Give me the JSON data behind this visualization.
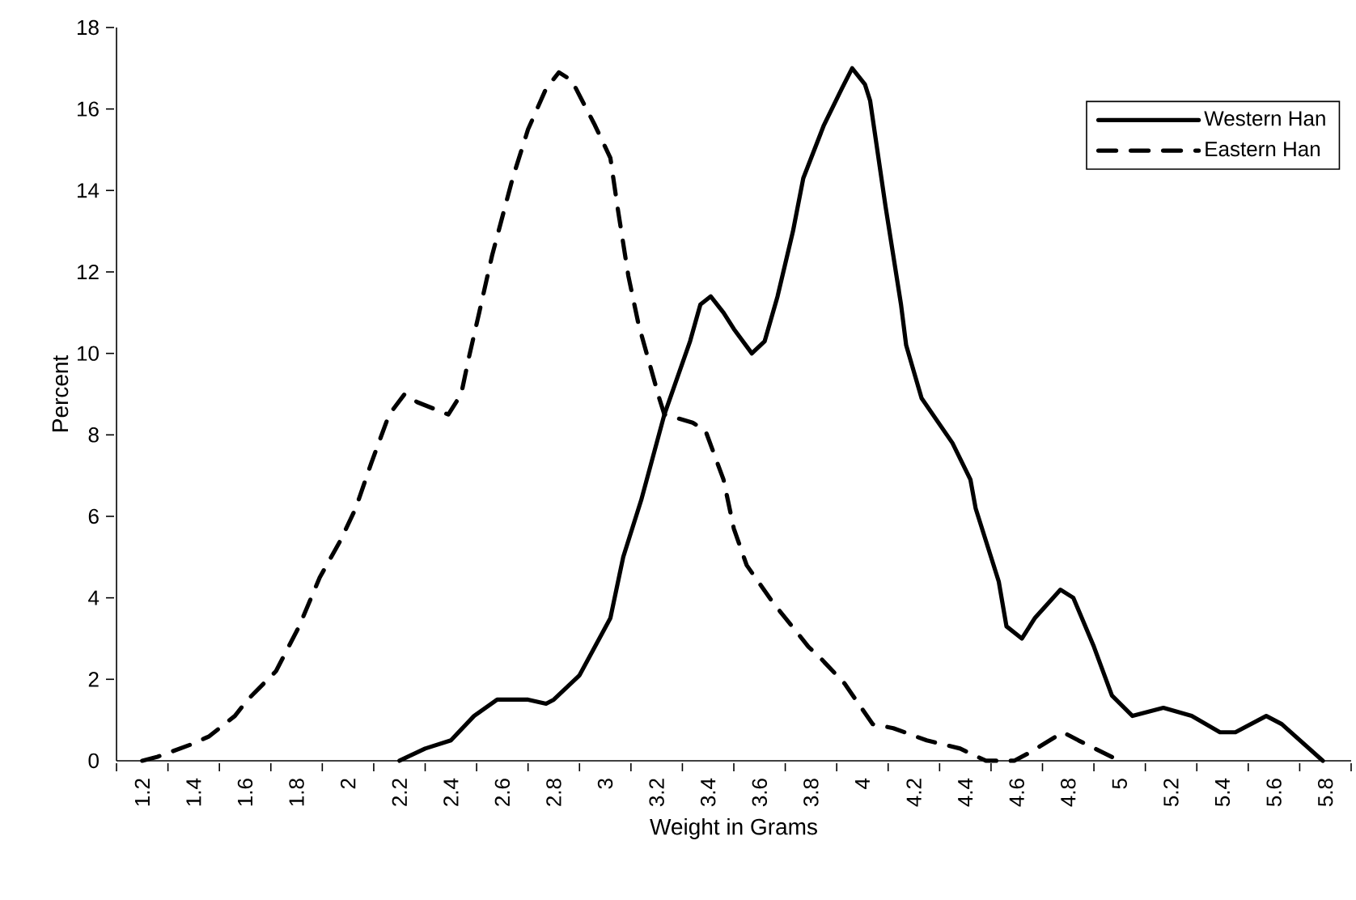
{
  "chart_data": {
    "type": "line",
    "xlabel": "Weight in Grams",
    "ylabel": "Percent",
    "xlim": [
      1.1,
      5.9
    ],
    "ylim": [
      0,
      18
    ],
    "xticks": [
      1.2,
      1.4,
      1.6,
      1.8,
      2,
      2.2,
      2.4,
      2.6,
      2.8,
      3,
      3.2,
      3.4,
      3.6,
      3.8,
      4,
      4.2,
      4.4,
      4.6,
      4.8,
      5,
      5.2,
      5.4,
      5.6,
      5.8
    ],
    "yticks": [
      0,
      2,
      4,
      6,
      8,
      10,
      12,
      14,
      16,
      18
    ],
    "grid": false,
    "legend": "top right",
    "series": [
      {
        "name": "Western Han",
        "color": "#000000",
        "line_style": "solid",
        "x": [
          2.2,
          2.3,
          2.4,
          2.49,
          2.58,
          2.7,
          2.77,
          2.8,
          2.9,
          2.96,
          3.02,
          3.07,
          3.14,
          3.23,
          3.33,
          3.37,
          3.41,
          3.46,
          3.5,
          3.57,
          3.62,
          3.67,
          3.73,
          3.77,
          3.85,
          3.92,
          3.96,
          4.01,
          4.03,
          4.09,
          4.15,
          4.17,
          4.23,
          4.35,
          4.42,
          4.44,
          4.5,
          4.53,
          4.56,
          4.62,
          4.67,
          4.77,
          4.82,
          4.9,
          4.97,
          5.05,
          5.17,
          5.28,
          5.39,
          5.45,
          5.57,
          5.63,
          5.79
        ],
        "values": [
          0,
          0.3,
          0.5,
          1.1,
          1.5,
          1.5,
          1.4,
          1.5,
          2.1,
          2.8,
          3.5,
          5.0,
          6.4,
          8.5,
          10.3,
          11.2,
          11.4,
          11.0,
          10.6,
          10.0,
          10.3,
          11.4,
          13.0,
          14.3,
          15.6,
          16.5,
          17.0,
          16.6,
          16.2,
          13.6,
          11.2,
          10.2,
          8.9,
          7.8,
          6.9,
          6.2,
          5.0,
          4.4,
          3.3,
          3.0,
          3.5,
          4.2,
          4.0,
          2.8,
          1.6,
          1.1,
          1.3,
          1.1,
          0.7,
          0.7,
          1.1,
          0.9,
          0
        ]
      },
      {
        "name": "Eastern Han",
        "color": "#000000",
        "line_style": "dashed",
        "x": [
          1.2,
          1.26,
          1.39,
          1.46,
          1.56,
          1.61,
          1.72,
          1.81,
          1.89,
          1.97,
          2.03,
          2.09,
          2.16,
          2.22,
          2.27,
          2.39,
          2.44,
          2.47,
          2.51,
          2.56,
          2.64,
          2.7,
          2.77,
          2.82,
          2.87,
          2.96,
          3.02,
          3.05,
          3.09,
          3.13,
          3.21,
          3.23,
          3.34,
          3.39,
          3.46,
          3.5,
          3.55,
          3.65,
          3.79,
          3.84,
          3.93,
          4.04,
          4.12,
          4.25,
          4.38,
          4.48,
          4.59,
          4.65,
          4.78,
          4.84,
          5.0
        ],
        "values": [
          0,
          0.1,
          0.4,
          0.6,
          1.1,
          1.5,
          2.2,
          3.3,
          4.5,
          5.4,
          6.2,
          7.3,
          8.5,
          9.0,
          8.8,
          8.5,
          9.0,
          9.9,
          11.0,
          12.4,
          14.3,
          15.5,
          16.5,
          16.9,
          16.7,
          15.6,
          14.8,
          13.5,
          11.9,
          10.7,
          8.9,
          8.5,
          8.3,
          8.1,
          6.9,
          5.7,
          4.8,
          3.9,
          2.8,
          2.5,
          1.9,
          0.9,
          0.8,
          0.5,
          0.3,
          0,
          0,
          0.2,
          0.7,
          0.5,
          0
        ]
      }
    ]
  }
}
